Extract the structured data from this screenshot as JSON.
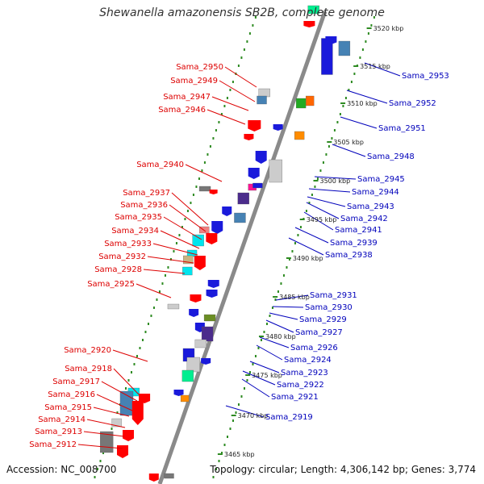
{
  "title": "Shewanella amazonensis SB2B, complete genome",
  "footer": {
    "accession": "Accession: NC_008700",
    "topology": "Topology: circular; Length: 4,306,142 bp; Genes: 3,774"
  },
  "colors": {
    "left_labels": "#dd0000",
    "right_labels": "#0000bb",
    "backbone": "#888888",
    "ticks": "#2e8b22"
  },
  "scale_labels": [
    "3520 kbp",
    "3515 kbp",
    "3510 kbp",
    "3505 kbp",
    "3500 kbp",
    "3495 kbp",
    "3490 kbp",
    "3485 kbp",
    "3480 kbp",
    "3475 kbp",
    "3470 kbp",
    "3465 kbp"
  ],
  "left_genes": [
    "Sama_2950",
    "Sama_2949",
    "Sama_2947",
    "Sama_2946",
    "Sama_2940",
    "Sama_2937",
    "Sama_2936",
    "Sama_2935",
    "Sama_2934",
    "Sama_2933",
    "Sama_2932",
    "Sama_2928",
    "Sama_2925",
    "Sama_2920",
    "Sama_2918",
    "Sama_2917",
    "Sama_2916",
    "Sama_2915",
    "Sama_2914",
    "Sama_2913",
    "Sama_2912"
  ],
  "right_genes": [
    "Sama_2953",
    "Sama_2952",
    "Sama_2951",
    "Sama_2948",
    "Sama_2945",
    "Sama_2944",
    "Sama_2943",
    "Sama_2942",
    "Sama_2941",
    "Sama_2939",
    "Sama_2938",
    "Sama_2931",
    "Sama_2930",
    "Sama_2929",
    "Sama_2927",
    "Sama_2926",
    "Sama_2924",
    "Sama_2923",
    "Sama_2922",
    "Sama_2921",
    "Sama_2919"
  ]
}
